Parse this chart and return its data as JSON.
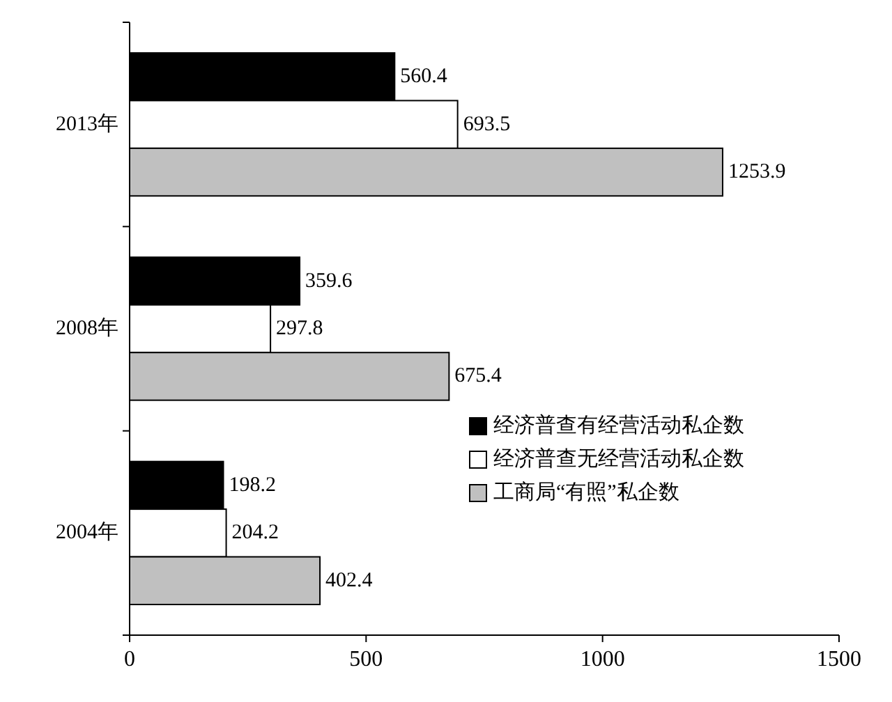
{
  "chart_data": {
    "type": "bar",
    "orientation": "horizontal",
    "categories": [
      "2013年",
      "2008年",
      "2004年"
    ],
    "series": [
      {
        "name": "经济普查有经营活动私企数",
        "color": "#000000",
        "values": [
          560.4,
          359.6,
          198.2
        ]
      },
      {
        "name": "经济普查无经营活动私企数",
        "color": "#ffffff",
        "values": [
          693.5,
          297.8,
          204.2
        ]
      },
      {
        "name": "工商局“有照”私企数",
        "color": "#c0c0c0",
        "values": [
          1253.9,
          675.4,
          402.4
        ]
      }
    ],
    "xlim": [
      0,
      1500
    ],
    "xticks": [
      0,
      500,
      1000,
      1500
    ],
    "data_labels": true,
    "legend": "bottom right",
    "grid": false
  }
}
